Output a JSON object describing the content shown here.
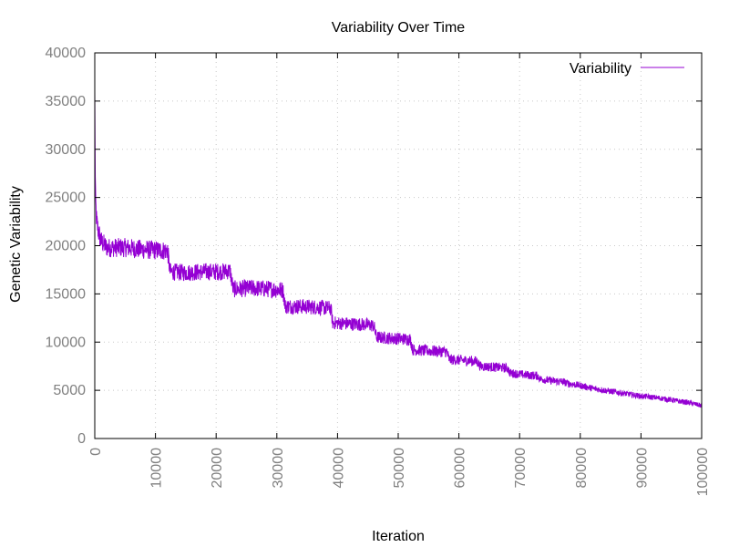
{
  "chart_data": {
    "type": "line",
    "title": "Variability Over Time",
    "xlabel": "Iteration",
    "ylabel": "Genetic Variability",
    "xlim": [
      0,
      100000
    ],
    "ylim": [
      0,
      40000
    ],
    "xticks": [
      0,
      10000,
      20000,
      30000,
      40000,
      50000,
      60000,
      70000,
      80000,
      90000,
      100000
    ],
    "yticks": [
      0,
      5000,
      10000,
      15000,
      20000,
      25000,
      30000,
      35000,
      40000
    ],
    "grid": true,
    "legend_position": "top-right",
    "series": [
      {
        "name": "Variability",
        "color": "#9400d3",
        "x": [
          0,
          100,
          300,
          600,
          1000,
          2000,
          5000,
          8000,
          11000,
          12000,
          12400,
          15000,
          18000,
          21000,
          22300,
          22800,
          26000,
          29000,
          31000,
          31400,
          34000,
          37000,
          38900,
          39200,
          42000,
          45000,
          46000,
          46400,
          49000,
          52000,
          52400,
          55000,
          58000,
          58400,
          61000,
          63000,
          63500,
          66000,
          68000,
          68400,
          71000,
          73000,
          73300,
          75000,
          77000,
          78000,
          80000,
          82000,
          84000,
          86000,
          88000,
          90000,
          93000,
          96000,
          98000,
          100000
        ],
        "y": [
          36000,
          25000,
          22500,
          21500,
          20500,
          19800,
          19800,
          19600,
          19500,
          19500,
          17300,
          17200,
          17300,
          17300,
          17400,
          15500,
          15600,
          15500,
          15400,
          13700,
          13700,
          13600,
          13500,
          12000,
          11900,
          11800,
          11700,
          10500,
          10400,
          10300,
          9200,
          9100,
          9000,
          8200,
          8100,
          8000,
          7500,
          7400,
          7300,
          6800,
          6600,
          6500,
          6200,
          6000,
          5900,
          5700,
          5500,
          5200,
          5000,
          4800,
          4600,
          4400,
          4200,
          3900,
          3700,
          3400
        ],
        "noise_amplitude": [
          0,
          1500,
          1300,
          1200,
          1100,
          1000,
          1000,
          1000,
          1000,
          1000,
          900,
          900,
          900,
          900,
          900,
          900,
          900,
          900,
          900,
          800,
          800,
          800,
          800,
          700,
          700,
          700,
          700,
          650,
          650,
          650,
          600,
          600,
          600,
          550,
          550,
          550,
          500,
          500,
          500,
          450,
          450,
          450,
          400,
          400,
          400,
          380,
          360,
          340,
          320,
          310,
          300,
          290,
          280,
          270,
          260,
          250
        ]
      }
    ]
  }
}
